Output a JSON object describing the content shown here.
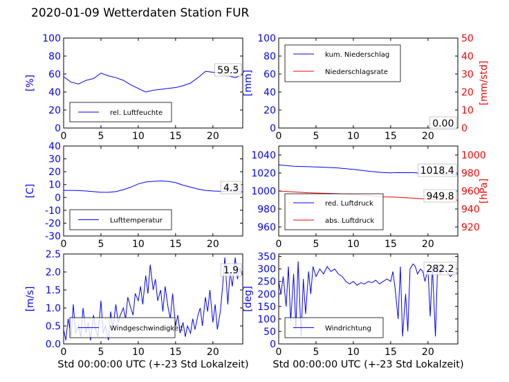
{
  "title": "2020-01-09 Wetterdaten Station FUR\u0007",
  "colors": {
    "blue": "#0000ff",
    "red": "#ff0000",
    "axis": "#000000"
  },
  "chart_data": [
    {
      "id": "humidity",
      "type": "line",
      "xlim": [
        0,
        24
      ],
      "xticks": [
        0,
        5,
        10,
        15,
        20
      ],
      "ylim": [
        0,
        100
      ],
      "yticks": [
        0,
        20,
        40,
        60,
        80,
        100
      ],
      "ylabel": "[%]",
      "ylabel_color": "#0000ff",
      "legend": "bottom-left",
      "series": [
        {
          "name": "rel. Luftfeuchte",
          "color": "#0000ff",
          "x": [
            0,
            1,
            2,
            3,
            4,
            5,
            6,
            7,
            8,
            9,
            10,
            11,
            12,
            13,
            14,
            15,
            16,
            17,
            18,
            19,
            20,
            21,
            22,
            23,
            24
          ],
          "y": [
            57,
            51,
            49,
            53,
            55,
            61,
            58,
            56,
            53,
            48,
            44,
            40,
            42,
            43,
            44,
            45,
            47,
            50,
            56,
            63,
            62,
            61,
            58,
            56,
            59.5
          ]
        }
      ],
      "annotation": "59.5"
    },
    {
      "id": "precipitation",
      "type": "line",
      "xlim": [
        0,
        24
      ],
      "xticks": [
        0,
        5,
        10,
        15,
        20
      ],
      "ylim": [
        0,
        100
      ],
      "yticks": [
        0,
        20,
        40,
        60,
        80,
        100
      ],
      "ylabel": "[mm]",
      "ylabel_color": "#0000ff",
      "ylim2": [
        0,
        50
      ],
      "yticks2": [
        0,
        10,
        20,
        30,
        40,
        50
      ],
      "ylabel2": "[mm/std]",
      "ylabel2_color": "#ff0000",
      "legend": "top-left",
      "series": [
        {
          "name": "kum. Niederschlag",
          "color": "#0000ff",
          "axis": "left",
          "x": [
            0,
            24
          ],
          "y": [
            0,
            0
          ]
        },
        {
          "name": "Niederschlagsrate",
          "color": "#ff0000",
          "axis": "right",
          "x": [
            0,
            24
          ],
          "y": [
            0,
            0
          ]
        }
      ],
      "annotation": "0.00"
    },
    {
      "id": "temperature",
      "type": "line",
      "xlim": [
        0,
        24
      ],
      "xticks": [
        0,
        5,
        10,
        15,
        20
      ],
      "ylim": [
        -30,
        40
      ],
      "yticks": [
        -30,
        -20,
        -10,
        0,
        10,
        20,
        30,
        40
      ],
      "ylabel": "[C]",
      "ylabel_color": "#0000ff",
      "legend": "bottom-left",
      "series": [
        {
          "name": "Lufttemperatur",
          "color": "#0000ff",
          "x": [
            0,
            1,
            2,
            3,
            4,
            5,
            6,
            7,
            8,
            9,
            10,
            11,
            12,
            13,
            14,
            15,
            16,
            17,
            18,
            19,
            20,
            21,
            22,
            23,
            24
          ],
          "y": [
            5.5,
            5.5,
            5.3,
            5.0,
            4.5,
            4.0,
            4.0,
            4.5,
            6.0,
            8.0,
            10.5,
            12.0,
            12.5,
            12.8,
            12.5,
            11.5,
            9.5,
            8.0,
            6.5,
            5.5,
            5.0,
            4.8,
            4.5,
            4.4,
            4.3
          ]
        }
      ],
      "annotation": "4.3"
    },
    {
      "id": "pressure",
      "type": "line",
      "xlim": [
        0,
        24
      ],
      "xticks": [
        0,
        5,
        10,
        15,
        20
      ],
      "ylim": [
        950,
        1050
      ],
      "yticks": [
        960,
        980,
        1000,
        1020,
        1040
      ],
      "ylim2": [
        910,
        1010
      ],
      "yticks2": [
        920,
        940,
        960,
        980,
        1000
      ],
      "ylabel2": "[hPa]",
      "ylabel2_color": "#ff0000",
      "legend": "bottom-left",
      "series": [
        {
          "name": "red. Luftdruck",
          "color": "#0000ff",
          "axis": "left",
          "x": [
            0,
            2,
            4,
            6,
            8,
            10,
            12,
            14,
            15,
            16,
            18,
            20,
            22,
            24
          ],
          "y": [
            1029,
            1027.5,
            1027,
            1026.5,
            1025.5,
            1024,
            1022,
            1020.5,
            1020.2,
            1020.5,
            1020.4,
            1019.5,
            1018.8,
            1018.4
          ]
        },
        {
          "name": "abs. Luftdruck",
          "color": "#ff0000",
          "axis": "right",
          "x": [
            0,
            2,
            4,
            6,
            8,
            10,
            12,
            14,
            16,
            18,
            20,
            22,
            24
          ],
          "y": [
            960,
            959,
            958,
            957.5,
            957,
            956,
            955,
            953.5,
            953,
            952,
            951,
            950.5,
            949.8
          ]
        }
      ],
      "annotation_left": "1018.4",
      "annotation_right": "949.8"
    },
    {
      "id": "wind_speed",
      "type": "line",
      "xlim": [
        0,
        24
      ],
      "xticks": [
        0,
        5,
        10,
        15,
        20
      ],
      "ylim": [
        0,
        2.5
      ],
      "yticks": [
        0.0,
        0.5,
        1.0,
        1.5,
        2.0,
        2.5
      ],
      "ylabel": "[m/s]",
      "ylabel_color": "#0000ff",
      "legend": "bottom-left",
      "xlabel": "Std 00:00:00 UTC (+-23 Std Lokalzeit)",
      "series": [
        {
          "name": "Windgeschwindigkeit",
          "color": "#0000ff",
          "x": [
            0,
            0.3,
            0.6,
            1.0,
            1.3,
            1.6,
            2.0,
            2.3,
            2.6,
            3.0,
            3.3,
            3.6,
            4.0,
            4.3,
            4.6,
            5.0,
            5.3,
            5.6,
            6.0,
            6.3,
            6.6,
            7.0,
            7.3,
            7.6,
            8.0,
            8.3,
            8.6,
            9.0,
            9.3,
            9.6,
            10.0,
            10.3,
            10.6,
            11.0,
            11.3,
            11.6,
            12.0,
            12.3,
            12.6,
            13.0,
            13.3,
            13.6,
            14.0,
            14.3,
            14.6,
            15.0,
            15.3,
            15.6,
            16.0,
            16.3,
            16.6,
            17.0,
            17.3,
            17.6,
            18.0,
            18.3,
            18.6,
            19.0,
            19.3,
            19.6,
            20.0,
            20.3,
            20.6,
            21.0,
            21.3,
            21.6,
            22.0,
            22.3,
            22.6,
            23.0,
            23.3,
            23.6,
            24.0
          ],
          "y": [
            0.4,
            0.1,
            0.7,
            0.2,
            1.1,
            0.3,
            0.5,
            0.2,
            1.0,
            0.3,
            0.6,
            0.1,
            0.8,
            0.4,
            0.2,
            1.2,
            0.3,
            0.5,
            0.1,
            0.9,
            0.4,
            1.1,
            0.6,
            0.8,
            1.0,
            0.7,
            1.3,
            1.0,
            0.8,
            1.4,
            1.2,
            1.6,
            1.1,
            1.9,
            1.4,
            2.2,
            1.5,
            1.8,
            1.2,
            1.5,
            0.9,
            1.6,
            1.0,
            0.7,
            1.4,
            0.5,
            0.8,
            0.3,
            0.6,
            0.2,
            0.5,
            0.3,
            0.7,
            0.4,
            0.8,
            1.0,
            0.5,
            1.3,
            0.9,
            1.5,
            0.6,
            1.1,
            0.4,
            0.9,
            1.6,
            2.4,
            1.1,
            2.0,
            1.6,
            2.4,
            1.8,
            2.1,
            1.9
          ]
        }
      ],
      "annotation": "1.9"
    },
    {
      "id": "wind_direction",
      "type": "line",
      "xlim": [
        0,
        24
      ],
      "xticks": [
        0,
        5,
        10,
        15,
        20
      ],
      "ylim": [
        0,
        360
      ],
      "yticks": [
        0,
        50,
        100,
        150,
        200,
        250,
        300,
        350
      ],
      "ylabel": "[deg]",
      "ylabel_color": "#0000ff",
      "legend": "bottom-left",
      "xlabel": "Std 00:00:00 UTC (+-23 Std Lokalzeit)",
      "series": [
        {
          "name": "Windrichtung",
          "color": "#0000ff",
          "x": [
            0,
            0.3,
            0.6,
            1.0,
            1.3,
            1.6,
            2.0,
            2.3,
            2.6,
            3.0,
            3.3,
            3.6,
            4.0,
            4.3,
            4.6,
            5.0,
            5.5,
            6.0,
            6.5,
            7.0,
            7.5,
            8.0,
            8.5,
            9.0,
            9.5,
            10.0,
            10.5,
            11.0,
            11.5,
            12.0,
            12.5,
            13.0,
            13.5,
            14.0,
            14.5,
            15.0,
            15.3,
            15.6,
            16.0,
            16.3,
            16.6,
            17.0,
            17.3,
            17.6,
            18.0,
            18.3,
            18.6,
            19.0,
            19.3,
            19.6,
            20.0,
            20.3,
            20.6,
            21.0,
            21.3,
            21.6,
            22.0,
            22.5,
            23.0,
            23.5,
            24.0
          ],
          "y": [
            250,
            200,
            270,
            150,
            310,
            90,
            280,
            60,
            330,
            30,
            260,
            120,
            290,
            200,
            310,
            270,
            300,
            280,
            310,
            290,
            300,
            280,
            270,
            250,
            240,
            250,
            235,
            245,
            240,
            250,
            245,
            255,
            240,
            250,
            260,
            250,
            290,
            220,
            100,
            310,
            30,
            200,
            50,
            300,
            320,
            310,
            280,
            300,
            290,
            250,
            300,
            110,
            310,
            30,
            320,
            280,
            300,
            290,
            270,
            285,
            282.2
          ]
        }
      ],
      "annotation": "282.2"
    }
  ]
}
